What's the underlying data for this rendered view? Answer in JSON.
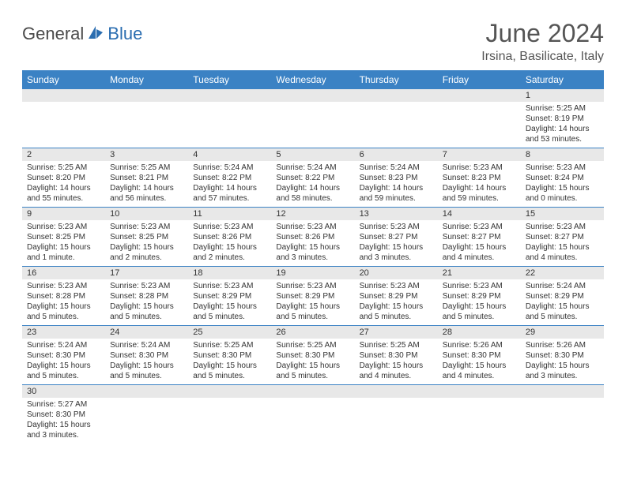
{
  "logo": {
    "part1": "General",
    "part2": "Blue"
  },
  "title": "June 2024",
  "location": "Irsina, Basilicate, Italy",
  "colors": {
    "header_bg": "#3b82c4",
    "header_text": "#ffffff",
    "daynum_bg": "#e8e8e8",
    "border": "#3b82c4",
    "logo_gray": "#4a4a4a",
    "logo_blue": "#2a6db0"
  },
  "weekdays": [
    "Sunday",
    "Monday",
    "Tuesday",
    "Wednesday",
    "Thursday",
    "Friday",
    "Saturday"
  ],
  "weeks": [
    [
      {
        "n": "",
        "lines": []
      },
      {
        "n": "",
        "lines": []
      },
      {
        "n": "",
        "lines": []
      },
      {
        "n": "",
        "lines": []
      },
      {
        "n": "",
        "lines": []
      },
      {
        "n": "",
        "lines": []
      },
      {
        "n": "1",
        "lines": [
          "Sunrise: 5:25 AM",
          "Sunset: 8:19 PM",
          "Daylight: 14 hours and 53 minutes."
        ]
      }
    ],
    [
      {
        "n": "2",
        "lines": [
          "Sunrise: 5:25 AM",
          "Sunset: 8:20 PM",
          "Daylight: 14 hours and 55 minutes."
        ]
      },
      {
        "n": "3",
        "lines": [
          "Sunrise: 5:25 AM",
          "Sunset: 8:21 PM",
          "Daylight: 14 hours and 56 minutes."
        ]
      },
      {
        "n": "4",
        "lines": [
          "Sunrise: 5:24 AM",
          "Sunset: 8:22 PM",
          "Daylight: 14 hours and 57 minutes."
        ]
      },
      {
        "n": "5",
        "lines": [
          "Sunrise: 5:24 AM",
          "Sunset: 8:22 PM",
          "Daylight: 14 hours and 58 minutes."
        ]
      },
      {
        "n": "6",
        "lines": [
          "Sunrise: 5:24 AM",
          "Sunset: 8:23 PM",
          "Daylight: 14 hours and 59 minutes."
        ]
      },
      {
        "n": "7",
        "lines": [
          "Sunrise: 5:23 AM",
          "Sunset: 8:23 PM",
          "Daylight: 14 hours and 59 minutes."
        ]
      },
      {
        "n": "8",
        "lines": [
          "Sunrise: 5:23 AM",
          "Sunset: 8:24 PM",
          "Daylight: 15 hours and 0 minutes."
        ]
      }
    ],
    [
      {
        "n": "9",
        "lines": [
          "Sunrise: 5:23 AM",
          "Sunset: 8:25 PM",
          "Daylight: 15 hours and 1 minute."
        ]
      },
      {
        "n": "10",
        "lines": [
          "Sunrise: 5:23 AM",
          "Sunset: 8:25 PM",
          "Daylight: 15 hours and 2 minutes."
        ]
      },
      {
        "n": "11",
        "lines": [
          "Sunrise: 5:23 AM",
          "Sunset: 8:26 PM",
          "Daylight: 15 hours and 2 minutes."
        ]
      },
      {
        "n": "12",
        "lines": [
          "Sunrise: 5:23 AM",
          "Sunset: 8:26 PM",
          "Daylight: 15 hours and 3 minutes."
        ]
      },
      {
        "n": "13",
        "lines": [
          "Sunrise: 5:23 AM",
          "Sunset: 8:27 PM",
          "Daylight: 15 hours and 3 minutes."
        ]
      },
      {
        "n": "14",
        "lines": [
          "Sunrise: 5:23 AM",
          "Sunset: 8:27 PM",
          "Daylight: 15 hours and 4 minutes."
        ]
      },
      {
        "n": "15",
        "lines": [
          "Sunrise: 5:23 AM",
          "Sunset: 8:27 PM",
          "Daylight: 15 hours and 4 minutes."
        ]
      }
    ],
    [
      {
        "n": "16",
        "lines": [
          "Sunrise: 5:23 AM",
          "Sunset: 8:28 PM",
          "Daylight: 15 hours and 5 minutes."
        ]
      },
      {
        "n": "17",
        "lines": [
          "Sunrise: 5:23 AM",
          "Sunset: 8:28 PM",
          "Daylight: 15 hours and 5 minutes."
        ]
      },
      {
        "n": "18",
        "lines": [
          "Sunrise: 5:23 AM",
          "Sunset: 8:29 PM",
          "Daylight: 15 hours and 5 minutes."
        ]
      },
      {
        "n": "19",
        "lines": [
          "Sunrise: 5:23 AM",
          "Sunset: 8:29 PM",
          "Daylight: 15 hours and 5 minutes."
        ]
      },
      {
        "n": "20",
        "lines": [
          "Sunrise: 5:23 AM",
          "Sunset: 8:29 PM",
          "Daylight: 15 hours and 5 minutes."
        ]
      },
      {
        "n": "21",
        "lines": [
          "Sunrise: 5:23 AM",
          "Sunset: 8:29 PM",
          "Daylight: 15 hours and 5 minutes."
        ]
      },
      {
        "n": "22",
        "lines": [
          "Sunrise: 5:24 AM",
          "Sunset: 8:29 PM",
          "Daylight: 15 hours and 5 minutes."
        ]
      }
    ],
    [
      {
        "n": "23",
        "lines": [
          "Sunrise: 5:24 AM",
          "Sunset: 8:30 PM",
          "Daylight: 15 hours and 5 minutes."
        ]
      },
      {
        "n": "24",
        "lines": [
          "Sunrise: 5:24 AM",
          "Sunset: 8:30 PM",
          "Daylight: 15 hours and 5 minutes."
        ]
      },
      {
        "n": "25",
        "lines": [
          "Sunrise: 5:25 AM",
          "Sunset: 8:30 PM",
          "Daylight: 15 hours and 5 minutes."
        ]
      },
      {
        "n": "26",
        "lines": [
          "Sunrise: 5:25 AM",
          "Sunset: 8:30 PM",
          "Daylight: 15 hours and 5 minutes."
        ]
      },
      {
        "n": "27",
        "lines": [
          "Sunrise: 5:25 AM",
          "Sunset: 8:30 PM",
          "Daylight: 15 hours and 4 minutes."
        ]
      },
      {
        "n": "28",
        "lines": [
          "Sunrise: 5:26 AM",
          "Sunset: 8:30 PM",
          "Daylight: 15 hours and 4 minutes."
        ]
      },
      {
        "n": "29",
        "lines": [
          "Sunrise: 5:26 AM",
          "Sunset: 8:30 PM",
          "Daylight: 15 hours and 3 minutes."
        ]
      }
    ],
    [
      {
        "n": "30",
        "lines": [
          "Sunrise: 5:27 AM",
          "Sunset: 8:30 PM",
          "Daylight: 15 hours and 3 minutes."
        ]
      },
      {
        "n": "",
        "lines": []
      },
      {
        "n": "",
        "lines": []
      },
      {
        "n": "",
        "lines": []
      },
      {
        "n": "",
        "lines": []
      },
      {
        "n": "",
        "lines": []
      },
      {
        "n": "",
        "lines": []
      }
    ]
  ]
}
